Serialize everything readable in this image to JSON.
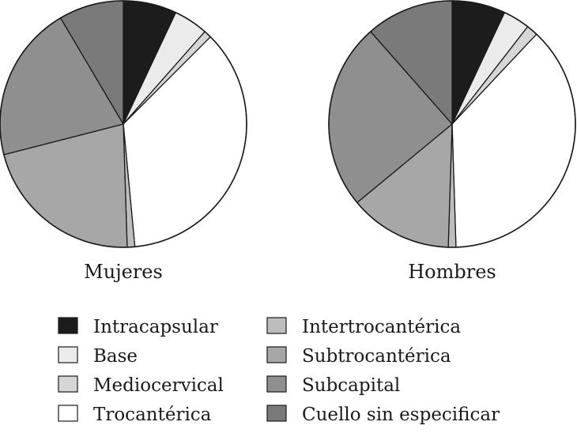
{
  "chart_data": [
    {
      "type": "pie",
      "label": "Mujeres",
      "categories": [
        "Intracapsular",
        "Base",
        "Mediocervical",
        "Trocantérica",
        "Intertrocantérica",
        "Subtrocantérica",
        "Subcapital",
        "Cuello sin especificar"
      ],
      "values": [
        7.0,
        4.5,
        1.0,
        36.0,
        1.0,
        21.5,
        20.5,
        8.5
      ]
    },
    {
      "type": "pie",
      "label": "Hombres",
      "categories": [
        "Intracapsular",
        "Base",
        "Mediocervical",
        "Trocantérica",
        "Intertrocantérica",
        "Subtrocantérica",
        "Subcapital",
        "Cuello sin especificar"
      ],
      "values": [
        7.0,
        3.5,
        1.5,
        37.5,
        1.0,
        13.5,
        24.5,
        11.5
      ]
    }
  ],
  "legend": {
    "items": [
      {
        "label": "Intracapsular",
        "color": "#1c1c1c"
      },
      {
        "label": "Base",
        "color": "#ebebeb"
      },
      {
        "label": "Mediocervical",
        "color": "#d6d6d6"
      },
      {
        "label": "Trocantérica",
        "color": "#ffffff"
      },
      {
        "label": "Intertrocantérica",
        "color": "#bdbdbd"
      },
      {
        "label": "Subtrocantérica",
        "color": "#a7a7a7"
      },
      {
        "label": "Subcapital",
        "color": "#8f8f8f"
      },
      {
        "label": "Cuello sin especificar",
        "color": "#7a7a7a"
      }
    ]
  }
}
